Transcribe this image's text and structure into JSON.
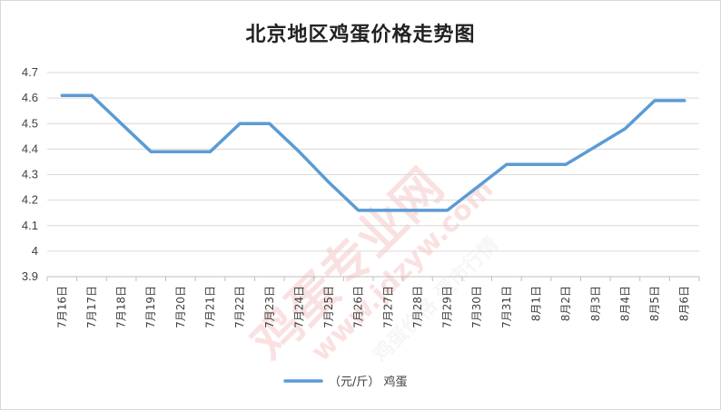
{
  "chart_data": {
    "type": "line",
    "title": "北京地区鸡蛋价格走势图",
    "categories": [
      "7月16日",
      "7月17日",
      "7月18日",
      "7月19日",
      "7月20日",
      "7月21日",
      "7月22日",
      "7月23日",
      "7月24日",
      "7月25日",
      "7月26日",
      "7月27日",
      "7月28日",
      "7月29日",
      "7月30日",
      "7月31日",
      "8月1日",
      "8月2日",
      "8月3日",
      "8月4日",
      "8月5日",
      "8月6日"
    ],
    "series": [
      {
        "name": "（元/斤） 鸡蛋",
        "values": [
          4.61,
          4.61,
          4.5,
          4.39,
          4.39,
          4.39,
          4.5,
          4.5,
          4.39,
          4.27,
          4.16,
          4.16,
          4.16,
          4.16,
          4.25,
          4.34,
          4.34,
          4.34,
          4.41,
          4.48,
          4.59,
          4.59
        ],
        "color": "#5b9bd5"
      }
    ],
    "ylim": [
      3.9,
      4.7
    ],
    "yticks": [
      "3.9",
      "4",
      "4.1",
      "4.2",
      "4.3",
      "4.4",
      "4.5",
      "4.6",
      "4.7"
    ],
    "grid": true,
    "legend": "bottom"
  },
  "watermark": {
    "main": "鸡蛋专业网",
    "url": "www.jdzyw.com",
    "slogan": "鸡蛋价格 蛋市行情"
  }
}
